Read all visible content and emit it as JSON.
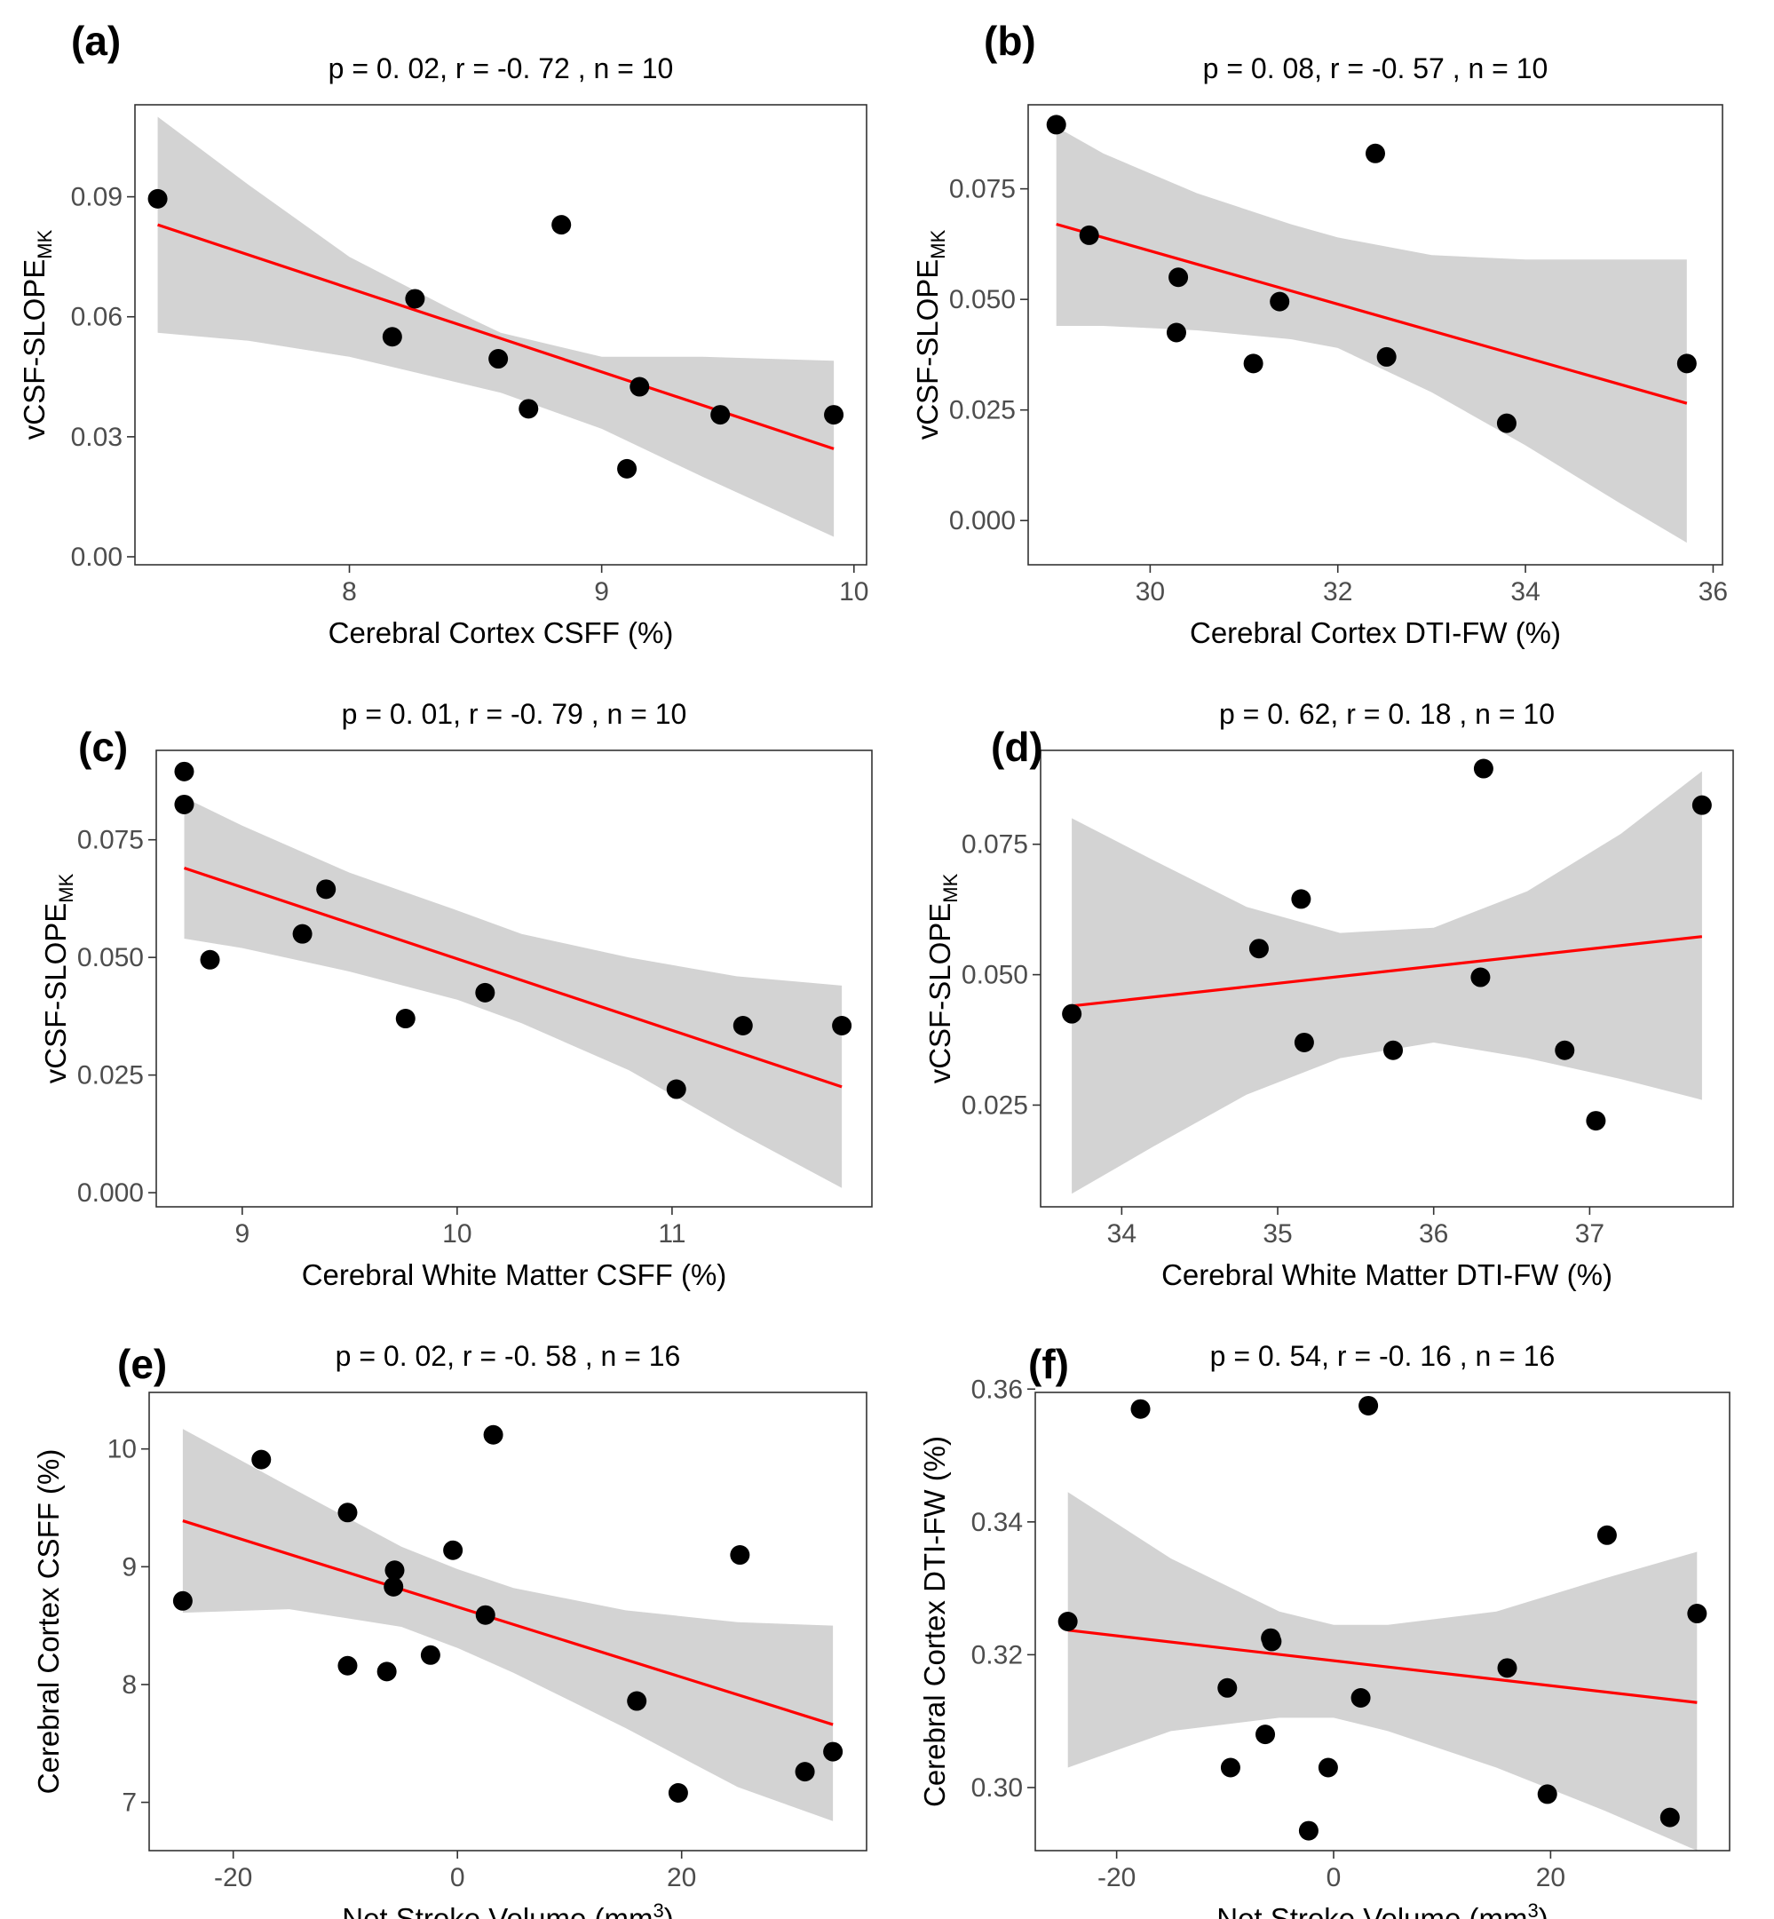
{
  "colors": {
    "point": "#000000",
    "fit": "#ff0000",
    "band": "#d3d3d3",
    "axis": "#333333",
    "text": "#000000",
    "tick_text": "#4d4d4d"
  },
  "chart_data": [
    {
      "type": "scatter",
      "panel": "(a)",
      "title": "p = 0. 02, r = -0. 72 , n = 10",
      "xlabel": "Cerebral Cortex CSFF (%)",
      "ylabel": {
        "main": "vCSF-SLOPE",
        "sub": "MK",
        "sup": ""
      },
      "xlim": [
        7.15,
        10.05
      ],
      "ylim": [
        -0.002,
        0.113
      ],
      "xticks": [
        8,
        9,
        10
      ],
      "xticklabels": [
        "8",
        "9",
        "10"
      ],
      "yticks": [
        0,
        0.03,
        0.06,
        0.09
      ],
      "yticklabels": [
        "0.00",
        "0.03",
        "0.06",
        "0.09"
      ],
      "points": [
        [
          7.24,
          0.0895
        ],
        [
          8.17,
          0.055
        ],
        [
          8.26,
          0.0645
        ],
        [
          8.59,
          0.0495
        ],
        [
          8.71,
          0.037
        ],
        [
          8.84,
          0.083
        ],
        [
          9.1,
          0.022
        ],
        [
          9.15,
          0.0425
        ],
        [
          9.47,
          0.0355
        ],
        [
          9.92,
          0.0355
        ]
      ],
      "fit": [
        [
          7.24,
          0.083
        ],
        [
          9.92,
          0.027
        ]
      ],
      "band": {
        "x": [
          7.24,
          7.6,
          8.0,
          8.4,
          8.6,
          9.0,
          9.4,
          9.92
        ],
        "upper": [
          0.11,
          0.093,
          0.075,
          0.062,
          0.056,
          0.05,
          0.05,
          0.049
        ],
        "lower": [
          0.056,
          0.054,
          0.05,
          0.044,
          0.041,
          0.032,
          0.02,
          0.005
        ]
      }
    },
    {
      "type": "scatter",
      "panel": "(b)",
      "title": "p = 0. 08, r = -0. 57 , n = 10",
      "xlabel": "Cerebral Cortex DTI-FW (%)",
      "ylabel": {
        "main": "vCSF-SLOPE",
        "sub": "MK",
        "sup": ""
      },
      "xlim": [
        28.7,
        36.1
      ],
      "ylim": [
        -0.01,
        0.094
      ],
      "xticks": [
        30,
        32,
        34,
        36
      ],
      "xticklabels": [
        "30",
        "32",
        "34",
        "36"
      ],
      "yticks": [
        0,
        0.025,
        0.05,
        0.075
      ],
      "yticklabels": [
        "0.000",
        "0.025",
        "0.050",
        "0.075"
      ],
      "points": [
        [
          29.0,
          0.0895
        ],
        [
          29.35,
          0.0645
        ],
        [
          30.3,
          0.055
        ],
        [
          30.28,
          0.0425
        ],
        [
          31.1,
          0.0355
        ],
        [
          31.38,
          0.0495
        ],
        [
          32.4,
          0.083
        ],
        [
          32.52,
          0.037
        ],
        [
          33.8,
          0.022
        ],
        [
          35.72,
          0.0355
        ]
      ],
      "fit": [
        [
          29.0,
          0.067
        ],
        [
          35.72,
          0.0265
        ]
      ],
      "band": {
        "x": [
          29.0,
          29.5,
          30.5,
          31.5,
          32.0,
          33.0,
          34.0,
          35.0,
          35.72
        ],
        "upper": [
          0.089,
          0.083,
          0.074,
          0.067,
          0.064,
          0.06,
          0.059,
          0.059,
          0.059
        ],
        "lower": [
          0.044,
          0.044,
          0.043,
          0.041,
          0.039,
          0.029,
          0.017,
          0.004,
          -0.005
        ]
      }
    },
    {
      "type": "scatter",
      "panel": "(c)",
      "title": "p = 0. 01, r = -0. 79 , n = 10",
      "xlabel": "Cerebral White Matter CSFF (%)",
      "ylabel": {
        "main": "vCSF-SLOPE",
        "sub": "MK",
        "sup": ""
      },
      "xlim": [
        8.6,
        11.93
      ],
      "ylim": [
        -0.003,
        0.094
      ],
      "xticks": [
        9,
        10,
        11
      ],
      "xticklabels": [
        "9",
        "10",
        "11"
      ],
      "yticks": [
        0,
        0.025,
        0.05,
        0.075
      ],
      "yticklabels": [
        "0.000",
        "0.025",
        "0.050",
        "0.075"
      ],
      "points": [
        [
          8.73,
          0.0895
        ],
        [
          8.73,
          0.0825
        ],
        [
          8.85,
          0.0495
        ],
        [
          9.28,
          0.055
        ],
        [
          9.39,
          0.0645
        ],
        [
          9.76,
          0.037
        ],
        [
          10.13,
          0.0425
        ],
        [
          11.02,
          0.022
        ],
        [
          11.33,
          0.0355
        ],
        [
          11.79,
          0.0355
        ]
      ],
      "fit": [
        [
          8.73,
          0.069
        ],
        [
          11.79,
          0.0225
        ]
      ],
      "band": {
        "x": [
          8.73,
          9.0,
          9.5,
          10.0,
          10.3,
          10.8,
          11.3,
          11.79
        ],
        "upper": [
          0.084,
          0.078,
          0.068,
          0.06,
          0.055,
          0.05,
          0.046,
          0.044
        ],
        "lower": [
          0.054,
          0.052,
          0.047,
          0.041,
          0.036,
          0.026,
          0.013,
          0.001
        ]
      }
    },
    {
      "type": "scatter",
      "panel": "(d)",
      "title": "p = 0. 62, r = 0. 18 , n = 10",
      "xlabel": "Cerebral White Matter DTI-FW (%)",
      "ylabel": {
        "main": "vCSF-SLOPE",
        "sub": "MK",
        "sup": ""
      },
      "xlim": [
        33.48,
        37.92
      ],
      "ylim": [
        0.0055,
        0.093
      ],
      "xticks": [
        34,
        35,
        36,
        37
      ],
      "xticklabels": [
        "34",
        "35",
        "36",
        "37"
      ],
      "yticks": [
        0.025,
        0.05,
        0.075
      ],
      "yticklabels": [
        "0.025",
        "0.050",
        "0.075"
      ],
      "points": [
        [
          33.68,
          0.0425
        ],
        [
          34.88,
          0.055
        ],
        [
          35.15,
          0.0645
        ],
        [
          35.17,
          0.037
        ],
        [
          35.74,
          0.0355
        ],
        [
          36.3,
          0.0495
        ],
        [
          36.32,
          0.0895
        ],
        [
          36.84,
          0.0355
        ],
        [
          37.04,
          0.022
        ],
        [
          37.72,
          0.0825
        ]
      ],
      "fit": [
        [
          33.68,
          0.044
        ],
        [
          37.72,
          0.0573
        ]
      ],
      "band": {
        "x": [
          33.68,
          34.2,
          34.8,
          35.4,
          36.0,
          36.6,
          37.2,
          37.72
        ],
        "upper": [
          0.08,
          0.072,
          0.063,
          0.058,
          0.059,
          0.066,
          0.077,
          0.089
        ],
        "lower": [
          0.008,
          0.017,
          0.027,
          0.034,
          0.037,
          0.034,
          0.03,
          0.026
        ]
      }
    },
    {
      "type": "scatter",
      "panel": "(e)",
      "title": "p = 0. 02, r = -0. 58 , n = 16",
      "xlabel": {
        "main": "Net Stroke Volume (mm",
        "sup": "3",
        "close": ")"
      },
      "ylabel": {
        "main": "Cerebral Cortex CSFF (%)",
        "sub": "",
        "sup": ""
      },
      "xlim": [
        -27.5,
        36.5
      ],
      "ylim": [
        6.59,
        10.48
      ],
      "xticks": [
        -20,
        0,
        20
      ],
      "xticklabels": [
        "-20",
        "0",
        "20"
      ],
      "yticks": [
        7,
        8,
        9,
        10
      ],
      "yticklabels": [
        "7",
        "8",
        "9",
        "10"
      ],
      "points": [
        [
          -24.5,
          8.71
        ],
        [
          -17.5,
          9.91
        ],
        [
          -9.8,
          9.46
        ],
        [
          -9.8,
          8.16
        ],
        [
          -6.3,
          8.11
        ],
        [
          -5.7,
          8.83
        ],
        [
          -5.6,
          8.97
        ],
        [
          -2.4,
          8.25
        ],
        [
          -0.4,
          9.14
        ],
        [
          2.5,
          8.59
        ],
        [
          3.2,
          10.12
        ],
        [
          16.0,
          7.86
        ],
        [
          19.7,
          7.08
        ],
        [
          25.2,
          9.1
        ],
        [
          31.0,
          7.26
        ],
        [
          33.5,
          7.43
        ]
      ],
      "fit": [
        [
          -24.5,
          9.39
        ],
        [
          33.5,
          7.66
        ]
      ],
      "band": {
        "x": [
          -24.5,
          -15,
          -5,
          0,
          5,
          15,
          25,
          33.5
        ],
        "upper": [
          10.17,
          9.68,
          9.17,
          8.98,
          8.82,
          8.63,
          8.53,
          8.5
        ],
        "lower": [
          8.61,
          8.64,
          8.49,
          8.31,
          8.1,
          7.63,
          7.13,
          6.84
        ]
      }
    },
    {
      "type": "scatter",
      "panel": "(f)",
      "title": "p = 0. 54, r = -0. 16 , n = 16",
      "xlabel": {
        "main": "Net Stroke Volume (mm",
        "sup": "3",
        "close": ")"
      },
      "ylabel": {
        "main": "Cerebral Cortex DTI-FW (%)",
        "sub": "",
        "sup": ""
      },
      "xlim": [
        -27.5,
        36.5
      ],
      "ylim": [
        0.2905,
        0.3595
      ],
      "xticks": [
        -20,
        0,
        20
      ],
      "xticklabels": [
        "-20",
        "0",
        "20"
      ],
      "yticks": [
        0.3,
        0.32,
        0.34,
        0.36
      ],
      "yticklabels": [
        "0.30",
        "0.32",
        "0.34",
        "0.36"
      ],
      "points": [
        [
          -24.5,
          0.325
        ],
        [
          -17.8,
          0.357
        ],
        [
          -9.8,
          0.315
        ],
        [
          -9.5,
          0.303
        ],
        [
          -6.3,
          0.308
        ],
        [
          -5.8,
          0.3225
        ],
        [
          -5.7,
          0.322
        ],
        [
          -2.3,
          0.2935
        ],
        [
          -0.5,
          0.303
        ],
        [
          2.5,
          0.3135
        ],
        [
          3.2,
          0.3575
        ],
        [
          16.0,
          0.318
        ],
        [
          19.7,
          0.299
        ],
        [
          25.2,
          0.338
        ],
        [
          31.0,
          0.2955
        ],
        [
          33.5,
          0.3262
        ]
      ],
      "fit": [
        [
          -24.5,
          0.3237
        ],
        [
          33.5,
          0.3128
        ]
      ],
      "band": {
        "x": [
          -24.5,
          -15,
          -5,
          0,
          5,
          15,
          25,
          33.5
        ],
        "upper": [
          0.3445,
          0.3345,
          0.3265,
          0.3245,
          0.3245,
          0.3265,
          0.3315,
          0.3355
        ],
        "lower": [
          0.303,
          0.3085,
          0.3105,
          0.3105,
          0.3085,
          0.303,
          0.2965,
          0.2905
        ]
      }
    }
  ]
}
